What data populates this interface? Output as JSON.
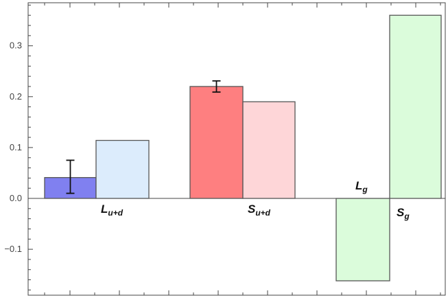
{
  "chart_data": {
    "type": "bar",
    "title": "",
    "xlabel": "",
    "ylabel": "",
    "ylim": [
      -0.19,
      0.4
    ],
    "y_ticks": [
      {
        "value": 0.3,
        "label": "0.3"
      },
      {
        "value": 0.2,
        "label": "0.2"
      },
      {
        "value": 0.1,
        "label": "0.1"
      },
      {
        "value": 0.0,
        "label": "0.0"
      },
      {
        "value": -0.1,
        "label": "-0.1"
      }
    ],
    "bars": [
      {
        "id": "L_ud_lattice",
        "value": 0.041,
        "color": "#8080f0",
        "error": [
          0.01,
          0.075
        ]
      },
      {
        "id": "L_ud_model",
        "value": 0.114,
        "color": "#dcecfc"
      },
      {
        "id": "S_ud_lattice",
        "value": 0.22,
        "color": "#fe7f80",
        "error": [
          0.209,
          0.231
        ]
      },
      {
        "id": "S_ud_model",
        "value": 0.19,
        "color": "#fed6d8"
      },
      {
        "id": "L_g",
        "value": -0.162,
        "color": "#dbfcdb"
      },
      {
        "id": "S_g",
        "value": 0.36,
        "color": "#dbfcdb"
      }
    ],
    "labels": [
      {
        "name": "L-ud-label",
        "main": "L",
        "sub": "u+d"
      },
      {
        "name": "S-ud-label",
        "main": "S",
        "sub": "u+d"
      },
      {
        "name": "L-g-label",
        "main": "L",
        "sub": "g"
      },
      {
        "name": "S-g-label",
        "main": "S",
        "sub": "g"
      }
    ]
  }
}
